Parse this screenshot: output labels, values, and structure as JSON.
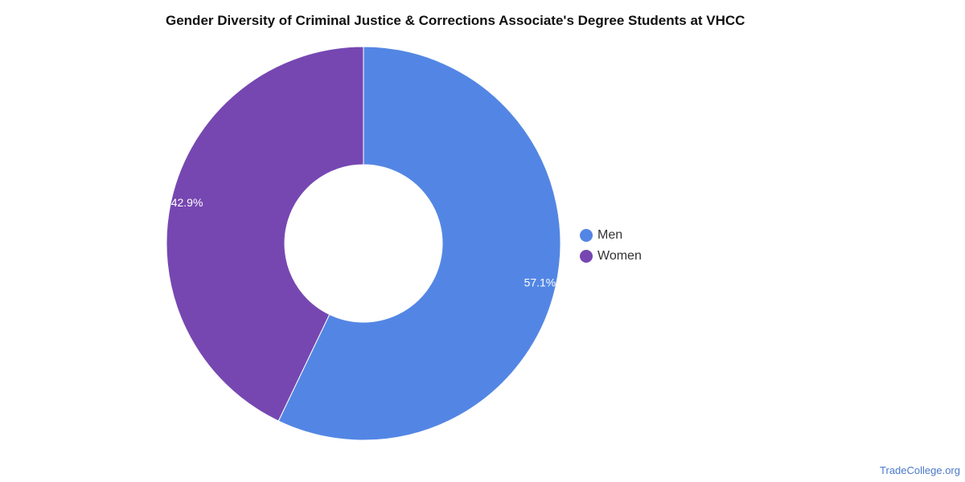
{
  "chart_data": {
    "type": "pie",
    "title": "Gender Diversity of Criminal Justice & Corrections Associate's Degree Students at VHCC",
    "donut": true,
    "categories": [
      "Men",
      "Women"
    ],
    "values": [
      57.1,
      42.9
    ],
    "data_labels": [
      "57.1%",
      "42.9%"
    ],
    "colors": [
      "#5386e4",
      "#7647b1"
    ],
    "legend": {
      "position": "right",
      "entries": [
        "Men",
        "Women"
      ]
    }
  },
  "watermark": "TradeCollege.org"
}
